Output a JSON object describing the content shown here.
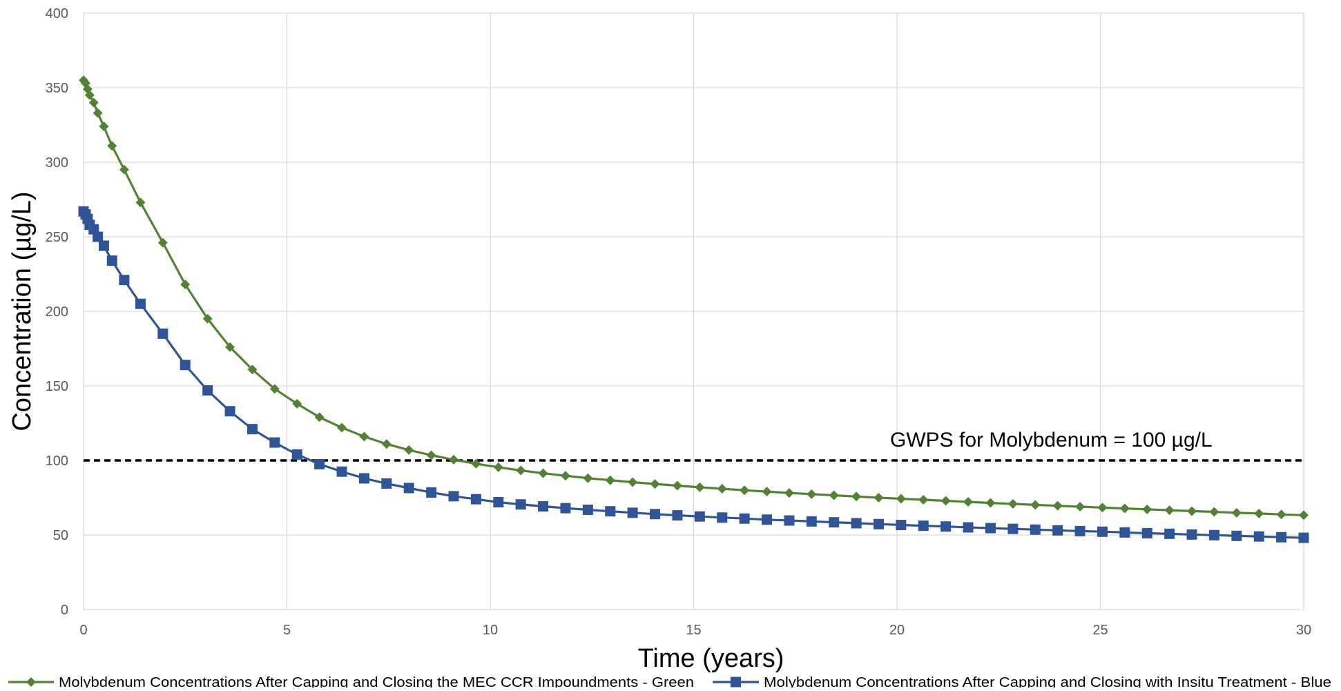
{
  "chart_data": {
    "type": "line",
    "xlabel": "Time (years)",
    "ylabel": "Concentration (µg/L)",
    "xlim": [
      0,
      30
    ],
    "ylim": [
      0,
      400
    ],
    "xticks": [
      0,
      5,
      10,
      15,
      20,
      25,
      30
    ],
    "yticks": [
      0,
      50,
      100,
      150,
      200,
      250,
      300,
      350,
      400
    ],
    "grid": true,
    "legend_position": "bottom",
    "series": [
      {
        "name": "Molybdenum Concentrations After Capping and Closing the MEC CCR Impoundments - Green",
        "color": "#548235",
        "marker": "diamond",
        "x": [
          0,
          0.05,
          0.1,
          0.15,
          0.25,
          0.35,
          0.5,
          0.7,
          1.0,
          1.4,
          1.95,
          2.5,
          3.05,
          3.6,
          4.15,
          4.7,
          5.25,
          5.8,
          6.35,
          6.9,
          7.45,
          8.0,
          8.55,
          9.1,
          9.65,
          10.2,
          10.75,
          11.3,
          11.85,
          12.4,
          12.95,
          13.5,
          14.05,
          14.6,
          15.15,
          15.7,
          16.25,
          16.8,
          17.35,
          17.9,
          18.45,
          19.0,
          19.55,
          20.1,
          20.65,
          21.2,
          21.75,
          22.3,
          22.85,
          23.4,
          23.95,
          24.5,
          25.05,
          25.6,
          26.15,
          26.7,
          27.25,
          27.8,
          28.35,
          28.9,
          29.45,
          30.0
        ],
        "y": [
          355,
          353,
          349,
          345,
          340,
          333,
          324,
          311,
          295,
          273,
          246,
          218,
          195,
          176,
          161,
          148,
          138,
          129,
          122,
          116,
          111,
          107,
          103.5,
          100.5,
          97.8,
          95.4,
          93.3,
          91.4,
          89.7,
          88.1,
          86.7,
          85.4,
          84.2,
          83.1,
          82.0,
          81.0,
          80.0,
          79.1,
          78.2,
          77.4,
          76.6,
          75.8,
          75.0,
          74.3,
          73.6,
          72.9,
          72.2,
          71.5,
          70.9,
          70.2,
          69.6,
          69.0,
          68.4,
          67.8,
          67.2,
          66.6,
          66.0,
          65.5,
          64.9,
          64.4,
          63.8,
          63.3
        ]
      },
      {
        "name": "Molybdenum Concentrations After Capping and Closing with Insitu Treatment - Blue",
        "color": "#2f5597",
        "marker": "square",
        "x": [
          0,
          0.05,
          0.1,
          0.15,
          0.25,
          0.35,
          0.5,
          0.7,
          1.0,
          1.4,
          1.95,
          2.5,
          3.05,
          3.6,
          4.15,
          4.7,
          5.25,
          5.8,
          6.35,
          6.9,
          7.45,
          8.0,
          8.55,
          9.1,
          9.65,
          10.2,
          10.75,
          11.3,
          11.85,
          12.4,
          12.95,
          13.5,
          14.05,
          14.6,
          15.15,
          15.7,
          16.25,
          16.8,
          17.35,
          17.9,
          18.45,
          19.0,
          19.55,
          20.1,
          20.65,
          21.2,
          21.75,
          22.3,
          22.85,
          23.4,
          23.95,
          24.5,
          25.05,
          25.6,
          26.15,
          26.7,
          27.25,
          27.8,
          28.35,
          28.9,
          29.45,
          30.0
        ],
        "y": [
          267,
          265,
          262,
          258,
          255,
          250,
          244,
          234,
          221,
          205,
          185,
          164,
          147,
          133,
          121,
          112,
          104,
          97.5,
          92.5,
          88,
          84.5,
          81.5,
          78.5,
          76,
          74,
          72,
          70.5,
          69.2,
          68,
          66.9,
          65.9,
          64.9,
          64,
          63.2,
          62.4,
          61.7,
          61,
          60.3,
          59.7,
          59.1,
          58.5,
          57.9,
          57.3,
          56.7,
          56.2,
          55.7,
          55.1,
          54.6,
          54.1,
          53.6,
          53.1,
          52.6,
          52.2,
          51.7,
          51.2,
          50.8,
          50.3,
          49.9,
          49.4,
          49,
          48.5,
          48.1
        ]
      }
    ],
    "reference_line": {
      "y": 100,
      "label": "GWPS for Molybdenum = 100 µg/L",
      "color": "#000000",
      "style": "dashed"
    }
  }
}
